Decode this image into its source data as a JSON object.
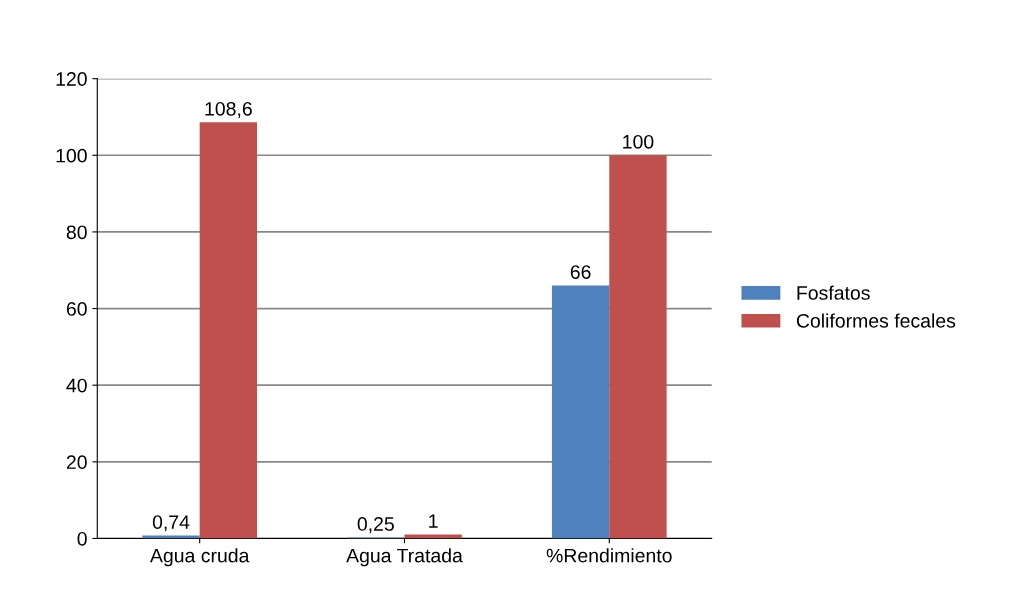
{
  "chart_data": {
    "type": "bar",
    "categories": [
      "Agua cruda",
      "Agua Tratada",
      "%Rendimiento"
    ],
    "series": [
      {
        "name": "Fosfatos",
        "color": "#4f81bd",
        "values": [
          0.74,
          0.25,
          66
        ],
        "value_labels": [
          "0,74",
          "0,25",
          "66"
        ]
      },
      {
        "name": "Coliformes fecales",
        "color": "#c0504d",
        "values": [
          108.6,
          1,
          100
        ],
        "value_labels": [
          "108,6",
          "1",
          "100"
        ]
      }
    ],
    "ylim": [
      0,
      120
    ],
    "yticks": [
      0,
      20,
      40,
      60,
      80,
      100,
      120
    ],
    "grid": "y",
    "legend": "right"
  }
}
